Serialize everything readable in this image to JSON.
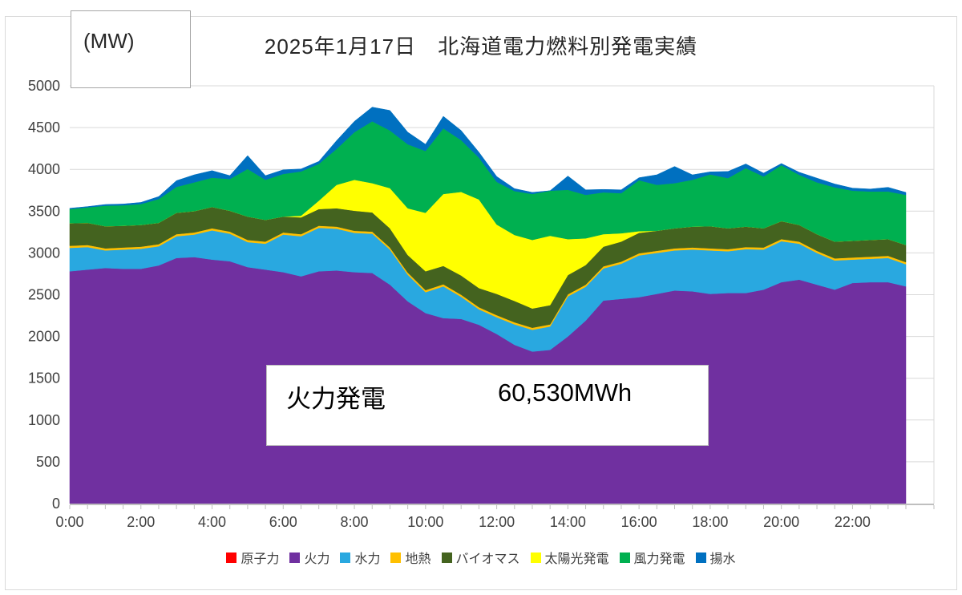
{
  "chart_data": {
    "type": "area",
    "stacked": true,
    "title": "2025年1月17日　北海道電力燃料別発電実績",
    "unit_label": "(MW)",
    "ylim": [
      0,
      5000
    ],
    "ytick_step": 500,
    "grid": true,
    "legend_position": "bottom",
    "x_major_labels": [
      "0:00",
      "2:00",
      "4:00",
      "6:00",
      "8:00",
      "10:00",
      "12:00",
      "14:00",
      "16:00",
      "18:00",
      "20:00",
      "22:00"
    ],
    "times": [
      "0:00",
      "0:30",
      "1:00",
      "1:30",
      "2:00",
      "2:30",
      "3:00",
      "3:30",
      "4:00",
      "4:30",
      "5:00",
      "5:30",
      "6:00",
      "6:30",
      "7:00",
      "7:30",
      "8:00",
      "8:30",
      "9:00",
      "9:30",
      "10:00",
      "10:30",
      "11:00",
      "11:30",
      "12:00",
      "12:30",
      "13:00",
      "13:30",
      "14:00",
      "14:30",
      "15:00",
      "15:30",
      "16:00",
      "16:30",
      "17:00",
      "17:30",
      "18:00",
      "18:30",
      "19:00",
      "19:30",
      "20:00",
      "20:30",
      "21:00",
      "21:30",
      "22:00",
      "22:30",
      "23:00",
      "23:30"
    ],
    "series": [
      {
        "name": "原子力",
        "slug": "nuclear",
        "color": "#FF0000",
        "values": [
          0,
          0,
          0,
          0,
          0,
          0,
          0,
          0,
          0,
          0,
          0,
          0,
          0,
          0,
          0,
          0,
          0,
          0,
          0,
          0,
          0,
          0,
          0,
          0,
          0,
          0,
          0,
          0,
          0,
          0,
          0,
          0,
          0,
          0,
          0,
          0,
          0,
          0,
          0,
          0,
          0,
          0,
          0,
          0,
          0,
          0,
          0,
          0
        ]
      },
      {
        "name": "火力",
        "slug": "thermal",
        "color": "#7030A0",
        "values": [
          2780,
          2800,
          2820,
          2810,
          2810,
          2850,
          2940,
          2950,
          2920,
          2900,
          2830,
          2800,
          2770,
          2720,
          2780,
          2790,
          2770,
          2760,
          2620,
          2420,
          2280,
          2220,
          2210,
          2140,
          2030,
          1900,
          1820,
          1840,
          2000,
          2190,
          2430,
          2450,
          2470,
          2510,
          2550,
          2540,
          2510,
          2520,
          2520,
          2560,
          2650,
          2680,
          2620,
          2560,
          2640,
          2650,
          2650,
          2600
        ]
      },
      {
        "name": "水力",
        "slug": "hydro",
        "color": "#29A8E0",
        "values": [
          280,
          270,
          210,
          230,
          240,
          230,
          260,
          270,
          350,
          330,
          300,
          310,
          450,
          480,
          520,
          500,
          470,
          470,
          420,
          320,
          250,
          380,
          265,
          185,
          200,
          245,
          260,
          280,
          480,
          405,
          385,
          420,
          500,
          490,
          480,
          500,
          520,
          500,
          525,
          480,
          490,
          430,
          380,
          350,
          280,
          280,
          290,
          265
        ]
      },
      {
        "name": "地熱",
        "slug": "geothermal",
        "color": "#FFC000",
        "values": [
          25,
          25,
          25,
          25,
          25,
          25,
          25,
          25,
          25,
          25,
          25,
          25,
          25,
          25,
          25,
          25,
          25,
          25,
          25,
          25,
          25,
          25,
          25,
          25,
          25,
          25,
          25,
          25,
          25,
          25,
          25,
          25,
          25,
          25,
          25,
          25,
          25,
          25,
          25,
          25,
          25,
          25,
          25,
          25,
          25,
          25,
          25,
          25
        ]
      },
      {
        "name": "バイオマス",
        "slug": "biomass",
        "color": "#44631F",
        "values": [
          270,
          265,
          265,
          260,
          260,
          255,
          255,
          255,
          255,
          250,
          280,
          260,
          190,
          200,
          200,
          220,
          240,
          230,
          230,
          210,
          225,
          220,
          230,
          230,
          255,
          255,
          230,
          230,
          230,
          235,
          235,
          240,
          245,
          240,
          240,
          250,
          265,
          250,
          245,
          230,
          215,
          200,
          200,
          200,
          200,
          200,
          200,
          205
        ]
      },
      {
        "name": "太陽光発電",
        "slug": "solar",
        "color": "#FFFF00",
        "values": [
          0,
          0,
          0,
          0,
          0,
          0,
          0,
          0,
          0,
          0,
          0,
          0,
          0,
          20,
          100,
          280,
          370,
          350,
          480,
          560,
          700,
          860,
          1000,
          1060,
          830,
          790,
          820,
          830,
          430,
          320,
          150,
          100,
          20,
          0,
          0,
          0,
          0,
          0,
          0,
          0,
          0,
          0,
          0,
          0,
          0,
          0,
          0,
          0
        ]
      },
      {
        "name": "風力発電",
        "slug": "wind",
        "color": "#00B050",
        "values": [
          170,
          185,
          245,
          245,
          250,
          285,
          310,
          345,
          350,
          380,
          570,
          480,
          510,
          530,
          440,
          430,
          570,
          740,
          690,
          765,
          740,
          785,
          620,
          500,
          510,
          525,
          550,
          540,
          590,
          520,
          500,
          480,
          610,
          550,
          540,
          560,
          620,
          600,
          700,
          620,
          670,
          600,
          620,
          650,
          600,
          580,
          570,
          600
        ]
      },
      {
        "name": "揚水",
        "slug": "pumped",
        "color": "#0070C0",
        "values": [
          10,
          10,
          15,
          15,
          20,
          30,
          75,
          90,
          85,
          40,
          160,
          50,
          50,
          30,
          30,
          100,
          130,
          170,
          240,
          145,
          80,
          145,
          115,
          65,
          65,
          30,
          20,
          0,
          165,
          60,
          35,
          40,
          30,
          120,
          200,
          60,
          30,
          80,
          50,
          40,
          20,
          30,
          50,
          40,
          30,
          30,
          50,
          30
        ]
      }
    ]
  },
  "annotation": {
    "series_label": "火力発電",
    "value_label": "60,530MWh"
  }
}
